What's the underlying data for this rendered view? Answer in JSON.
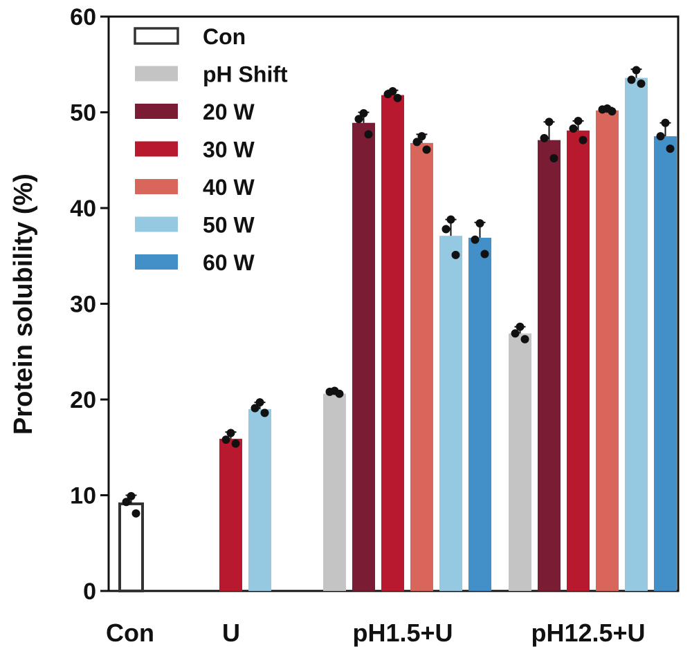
{
  "chart_data": {
    "type": "bar",
    "title": "",
    "xlabel": "",
    "ylabel": "Protein solubility (%)",
    "ylim": [
      0,
      60
    ],
    "yticks": [
      0,
      10,
      20,
      30,
      40,
      50,
      60
    ],
    "grid": false,
    "legend_position": "top-left",
    "groups": [
      {
        "label": "Con",
        "bars": [
          {
            "series": "Con",
            "value": 9.1,
            "err": 0.9,
            "points": [
              9.9,
              9.3,
              8.1
            ]
          }
        ]
      },
      {
        "label": "U",
        "bars": [
          {
            "series": "30 W",
            "value": 15.9,
            "err": 0.7,
            "points": [
              16.5,
              15.8,
              15.4
            ]
          },
          {
            "series": "50 W",
            "value": 19.0,
            "err": 0.7,
            "points": [
              19.7,
              19.1,
              18.6
            ]
          }
        ]
      },
      {
        "label": "pH1.5+U",
        "bars": [
          {
            "series": "pH Shift",
            "value": 20.6,
            "err": 0.3,
            "points": [
              20.9,
              20.8,
              20.6
            ]
          },
          {
            "series": "20 W",
            "value": 48.9,
            "err": 1.1,
            "points": [
              49.9,
              49.3,
              47.7
            ]
          },
          {
            "series": "30 W",
            "value": 51.8,
            "err": 0.5,
            "points": [
              52.2,
              51.9,
              51.5
            ]
          },
          {
            "series": "40 W",
            "value": 46.8,
            "err": 0.9,
            "points": [
              47.5,
              46.9,
              46.1
            ]
          },
          {
            "series": "50 W",
            "value": 37.1,
            "err": 1.7,
            "points": [
              38.8,
              37.8,
              35.1
            ]
          },
          {
            "series": "60 W",
            "value": 36.9,
            "err": 1.6,
            "points": [
              38.4,
              36.7,
              35.2
            ]
          }
        ]
      },
      {
        "label": "pH12.5+U",
        "bars": [
          {
            "series": "pH Shift",
            "value": 26.9,
            "err": 0.7,
            "points": [
              27.6,
              26.9,
              26.3
            ]
          },
          {
            "series": "20 W",
            "value": 47.1,
            "err": 1.9,
            "points": [
              49.0,
              47.3,
              45.2
            ]
          },
          {
            "series": "30 W",
            "value": 48.1,
            "err": 1.0,
            "points": [
              49.1,
              48.3,
              47.1
            ]
          },
          {
            "series": "40 W",
            "value": 50.2,
            "err": 0.3,
            "points": [
              50.4,
              50.3,
              50.1
            ]
          },
          {
            "series": "50 W",
            "value": 53.6,
            "err": 0.9,
            "points": [
              54.4,
              53.4,
              53.0
            ]
          },
          {
            "series": "60 W",
            "value": 47.5,
            "err": 1.4,
            "points": [
              48.9,
              47.5,
              46.2
            ]
          }
        ]
      }
    ],
    "legend": [
      {
        "name": "Con",
        "color": "#ffffff",
        "outline": "#333333"
      },
      {
        "name": "pH Shift",
        "color": "#c4c4c4"
      },
      {
        "name": "20 W",
        "color": "#7a1c33"
      },
      {
        "name": "30 W",
        "color": "#b8192e"
      },
      {
        "name": "40 W",
        "color": "#d9665a"
      },
      {
        "name": "50 W",
        "color": "#95c8e1"
      },
      {
        "name": "60 W",
        "color": "#4390c8"
      }
    ]
  }
}
